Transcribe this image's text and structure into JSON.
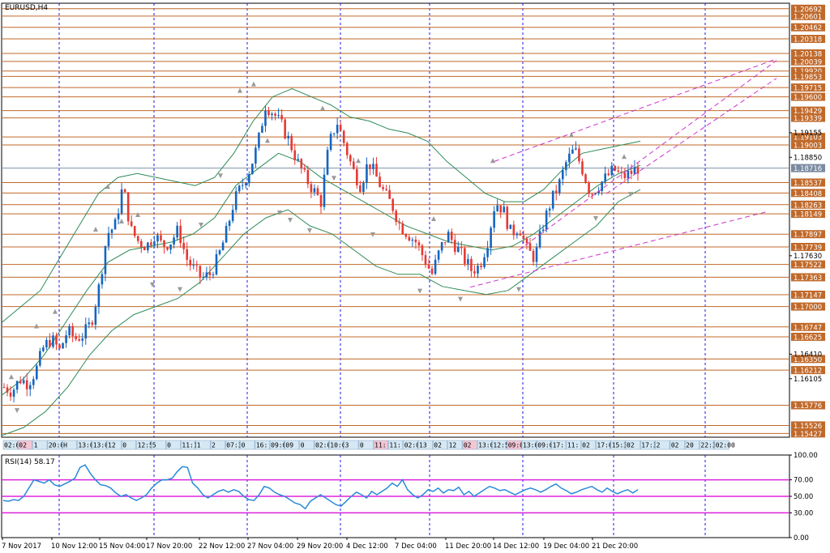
{
  "chart_data": [
    {
      "type": "candlestick",
      "title": "EURUSD,H4",
      "colors": {
        "bull": "#1565c0",
        "bear": "#e53935",
        "bollinger": "#2e8b57",
        "levels": "#c0692a",
        "trendlines": "#cc33cc",
        "price_label_bg": "#c0692a",
        "current_label_bg": "#7a8aa0",
        "vgrid": "#1a1aee"
      },
      "ylim": [
        1.1538,
        1.2076
      ],
      "price_axis_ticks": [
        "1.19155",
        "1.18850",
        "1.17630",
        "1.16410",
        "1.16105"
      ],
      "level_labels": [
        "1.20692",
        "1.20601",
        "1.20462",
        "1.20318",
        "1.20138",
        "1.20039",
        "1.19920",
        "1.19853",
        "1.19715",
        "1.19600",
        "1.19429",
        "1.19339",
        "1.19103",
        "1.19003",
        "1.18537",
        "1.18408",
        "1.18263",
        "1.18149",
        "1.17897",
        "1.17739",
        "1.17522",
        "1.17363",
        "1.17147",
        "1.17000",
        "1.16747",
        "1.16625",
        "1.16350",
        "1.16212",
        "1.15776",
        "1.15526",
        "1.15427"
      ],
      "current_price": "1.18716",
      "x_axis_labels": [
        "7 Nov 2017",
        "10 Nov 12:00",
        "15 Nov 04:00",
        "17 Nov 20:00",
        "22 Nov 12:00",
        "27 Nov 04:00",
        "29 Nov 20:00",
        "4 Dec 12:00",
        "7 Dec 04:00",
        "11 Dec 20:00",
        "14 Dec 12:00",
        "19 Dec 04:00",
        "21 Dec 20:00"
      ],
      "close_path": [
        1.16,
        1.1595,
        1.161,
        1.1605,
        1.162,
        1.165,
        1.166,
        1.1645,
        1.167,
        1.166,
        1.1665,
        1.168,
        1.1725,
        1.179,
        1.18,
        1.185,
        1.1795,
        1.178,
        1.1775,
        1.179,
        1.1775,
        1.178,
        1.1795,
        1.176,
        1.1745,
        1.1735,
        1.174,
        1.176,
        1.179,
        1.183,
        1.185,
        1.187,
        1.19,
        1.195,
        1.194,
        1.1925,
        1.1905,
        1.188,
        1.186,
        1.1845,
        1.183,
        1.19,
        1.193,
        1.19,
        1.187,
        1.185,
        1.188,
        1.186,
        1.184,
        1.1825,
        1.18,
        1.179,
        1.178,
        1.176,
        1.174,
        1.177,
        1.179,
        1.1775,
        1.176,
        1.1745,
        1.175,
        1.178,
        1.183,
        1.182,
        1.179,
        1.18,
        1.177,
        1.176,
        1.18,
        1.183,
        1.185,
        1.188,
        1.1895,
        1.187,
        1.184,
        1.185,
        1.186,
        1.187,
        1.186,
        1.1865,
        1.1872
      ],
      "bollinger_upper": [
        1.168,
        1.17,
        1.172,
        1.176,
        1.18,
        1.184,
        1.186,
        1.1865,
        1.186,
        1.1855,
        1.185,
        1.186,
        1.189,
        1.193,
        1.196,
        1.197,
        1.196,
        1.195,
        1.1935,
        1.193,
        1.192,
        1.1915,
        1.1905,
        1.188,
        1.186,
        1.184,
        1.183,
        1.183,
        1.1845,
        1.187,
        1.189,
        1.1895,
        1.19,
        1.1905
      ],
      "bollinger_middle": [
        1.159,
        1.161,
        1.164,
        1.168,
        1.172,
        1.1755,
        1.177,
        1.1775,
        1.178,
        1.179,
        1.181,
        1.185,
        1.187,
        1.189,
        1.188,
        1.186,
        1.1845,
        1.183,
        1.1815,
        1.18,
        1.179,
        1.178,
        1.1775,
        1.177,
        1.1775,
        1.179,
        1.181,
        1.183,
        1.185,
        1.1865,
        1.1875
      ],
      "bollinger_lower": [
        1.154,
        1.155,
        1.157,
        1.16,
        1.164,
        1.167,
        1.169,
        1.17,
        1.171,
        1.173,
        1.176,
        1.179,
        1.181,
        1.182,
        1.18,
        1.179,
        1.177,
        1.175,
        1.174,
        1.174,
        1.1725,
        1.172,
        1.1715,
        1.172,
        1.174,
        1.176,
        1.178,
        1.18,
        1.183,
        1.1845
      ],
      "bottom_timeline_tags": [
        "02:0",
        "02",
        "1",
        "20:00",
        "H",
        "13:0",
        "13:0",
        "12",
        "0",
        "12:57",
        "5",
        "0",
        "11:17",
        "1",
        "2",
        "07:30",
        "0",
        "16:",
        "09:00",
        "09",
        "0",
        "02:00",
        "10:00",
        "3",
        "0",
        "11:",
        "11:",
        "02:0",
        "13",
        "02",
        "12",
        "02",
        "13:0",
        "12:5",
        "09:0",
        "13:0",
        "09:0",
        "17:",
        "11:",
        "02",
        "17:0",
        "15:3",
        "02",
        "17:30",
        "2",
        "02",
        "20",
        "22:30",
        "02:00"
      ],
      "time_tag_hex": "#ffffff"
    },
    {
      "type": "line",
      "title": "RSI(14) 58.17",
      "ylim": [
        0,
        100
      ],
      "yticks": [
        "100.00",
        "70.00",
        "50.00",
        "30.00",
        "0.00"
      ],
      "levels": [
        70,
        50,
        30
      ],
      "level_color": "#dd22dd",
      "line_color": "#2a8ad8",
      "values": [
        45,
        44,
        46,
        45,
        50,
        60,
        70,
        68,
        66,
        70,
        64,
        62,
        65,
        68,
        72,
        85,
        88,
        78,
        70,
        64,
        63,
        60,
        54,
        50,
        52,
        48,
        45,
        48,
        52,
        60,
        66,
        70,
        70,
        72,
        80,
        86,
        85,
        66,
        60,
        52,
        48,
        52,
        56,
        58,
        55,
        58,
        56,
        50,
        46,
        45,
        52,
        62,
        60,
        55,
        52,
        50,
        46,
        42,
        40,
        35,
        44,
        48,
        52,
        48,
        44,
        40,
        38,
        44,
        50,
        55,
        52,
        48,
        56,
        52,
        56,
        60,
        66,
        62,
        70,
        58,
        52,
        48,
        52,
        58,
        56,
        60,
        54,
        58,
        57,
        61,
        52,
        56,
        50,
        54,
        58,
        62,
        60,
        57,
        58,
        55,
        52,
        55,
        58,
        60,
        58,
        55,
        58,
        62,
        65,
        60,
        57,
        53,
        55,
        58,
        60,
        62,
        58,
        55,
        60,
        56,
        53,
        56,
        58,
        54,
        58
      ]
    }
  ]
}
